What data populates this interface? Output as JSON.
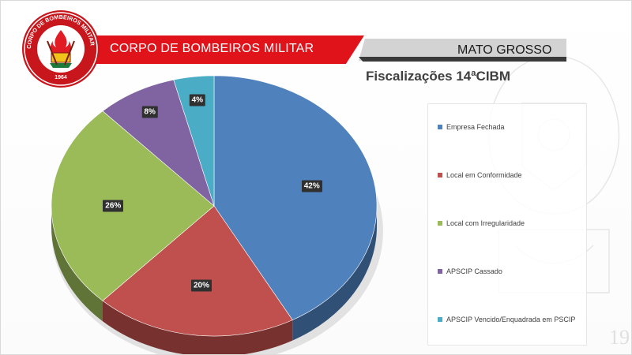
{
  "header": {
    "left_title": "CORPO DE BOMBEIROS MILITAR",
    "right_title": "MATO GROSSO",
    "logo_text": "CORPO DE BOMBEIROS MILITAR DE MATO GROSSO",
    "logo_year": "1964"
  },
  "watermark_year": "19",
  "chart_data": {
    "type": "pie",
    "title": "Fiscalizações 14ªCIBM",
    "legend_position": "right",
    "slices": [
      {
        "label": "Empresa Fechada",
        "value": 42,
        "text": "42%",
        "color": "#4f81bd"
      },
      {
        "label": "Local em Conformidade",
        "value": 20,
        "text": "20%",
        "color": "#c0504d"
      },
      {
        "label": "Local com Irregularidade",
        "value": 26,
        "text": "26%",
        "color": "#9bbb59"
      },
      {
        "label": "APSCIP Cassado",
        "value": 8,
        "text": "8%",
        "color": "#8064a2"
      },
      {
        "label": "APSCIP Vencido/Enquadrada em PSCIP",
        "value": 4,
        "text": "4%",
        "color": "#4bacc6"
      }
    ]
  }
}
